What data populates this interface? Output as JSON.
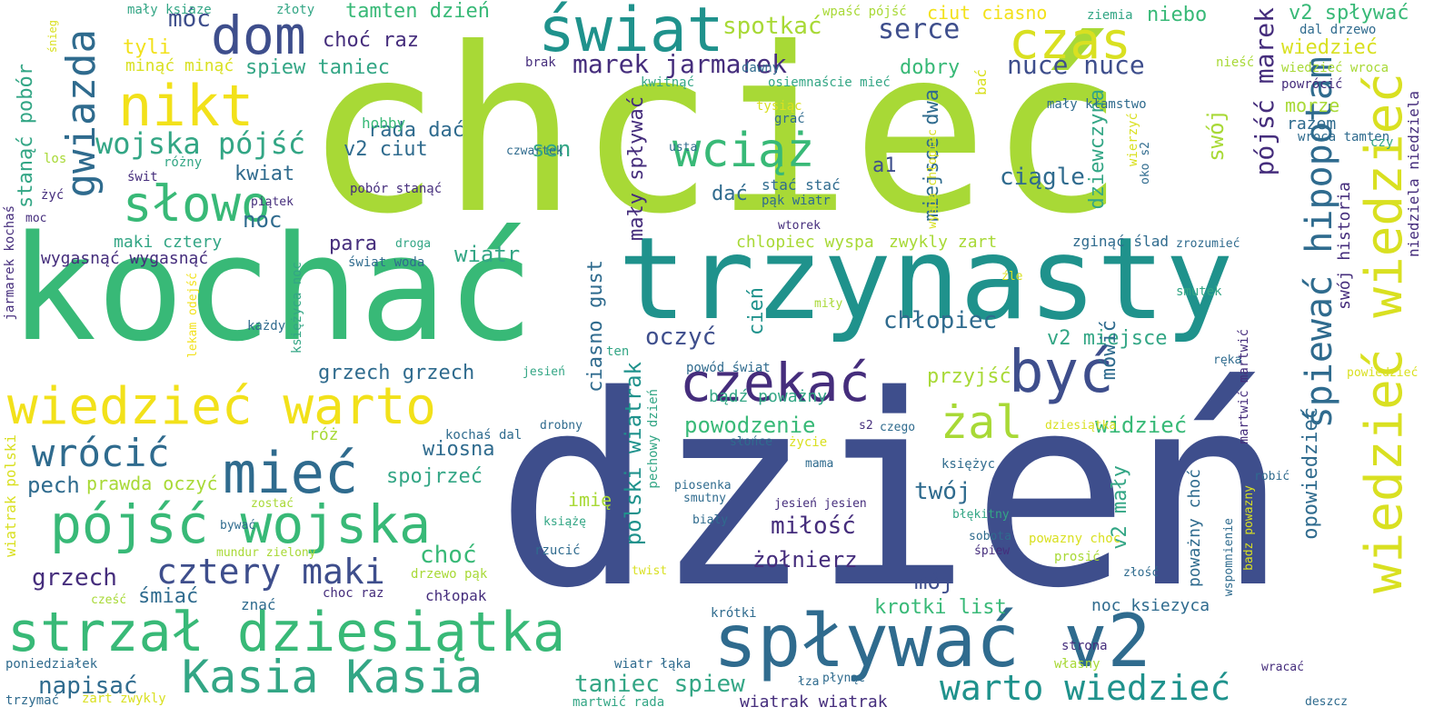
{
  "palette": [
    "#a8d936",
    "#3e4e8c",
    "#38b977",
    "#1f928c",
    "#2f6b8e",
    "#f2e11a",
    "#452d7c",
    "#33a685"
  ],
  "words": [
    {
      "text": "chcieć",
      "color": "#a8d936"
    },
    {
      "text": "dzień",
      "color": "#3e4e8c"
    },
    {
      "text": "kochać",
      "color": "#38b977"
    },
    {
      "text": "trzynasty",
      "color": "#1f928c"
    },
    {
      "text": "świat",
      "color": "#1f928c"
    },
    {
      "text": "dom",
      "color": "#3e4e8c"
    },
    {
      "text": "czas",
      "color": "#d9e021"
    },
    {
      "text": "nikt",
      "color": "#f2e11a"
    },
    {
      "text": "słowo",
      "color": "#38b977"
    },
    {
      "text": "wciąż",
      "color": "#38b977"
    },
    {
      "text": "gwiazda",
      "color": "#2f6b8e"
    },
    {
      "text": "wiedzieć warto",
      "color": "#f2e11a"
    },
    {
      "text": "mieć",
      "color": "#2f6b8e"
    },
    {
      "text": "wrócić",
      "color": "#2f6b8e"
    },
    {
      "text": "pójść wojska",
      "color": "#38b977"
    },
    {
      "text": "strzał dziesiątka",
      "color": "#38b977"
    },
    {
      "text": "spływać v2",
      "color": "#2f6b8e"
    },
    {
      "text": "czekać",
      "color": "#452d7c"
    },
    {
      "text": "być",
      "color": "#3e4e8c"
    },
    {
      "text": "Kasia Kasia",
      "color": "#33a685"
    },
    {
      "text": "wiedzieć wiedzieć",
      "color": "#d9e021"
    },
    {
      "text": "śpiewać hipopotam",
      "color": "#2f6b8e"
    },
    {
      "text": "cztery maki",
      "color": "#3e4e8c"
    },
    {
      "text": "żal",
      "color": "#a8d936"
    },
    {
      "text": "wojska pójść",
      "color": "#33a685"
    },
    {
      "text": "marek jarmarek",
      "color": "#452d7c"
    },
    {
      "text": "serce",
      "color": "#3e4e8c"
    },
    {
      "text": "nuce nuce",
      "color": "#3e4e8c"
    },
    {
      "text": "spotkać",
      "color": "#a8d936"
    },
    {
      "text": "pójść marek",
      "color": "#452d7c"
    },
    {
      "text": "warto wiedzieć",
      "color": "#1f928c"
    },
    {
      "text": "taniec spiew",
      "color": "#33a685"
    },
    {
      "text": "tamten dzień",
      "color": "#38b977"
    },
    {
      "text": "choć raz",
      "color": "#452d7c"
    },
    {
      "text": "spiew taniec",
      "color": "#33a685"
    },
    {
      "text": "móc",
      "color": "#3e4e8c"
    },
    {
      "text": "tyli",
      "color": "#f2e11a"
    },
    {
      "text": "minąć minąć",
      "color": "#d9e021"
    },
    {
      "text": "ciut ciasno",
      "color": "#f2e11a"
    },
    {
      "text": "niebo",
      "color": "#38b977"
    },
    {
      "text": "v2 spływać",
      "color": "#38b977"
    },
    {
      "text": "wiedzieć",
      "color": "#d9e021"
    },
    {
      "text": "dobry",
      "color": "#38b977"
    },
    {
      "text": "rada dać",
      "color": "#2f6b8e"
    },
    {
      "text": "v2 ciut",
      "color": "#2f6b8e"
    },
    {
      "text": "sen",
      "color": "#33a685"
    },
    {
      "text": "kwiat",
      "color": "#2f6b8e"
    },
    {
      "text": "dać",
      "color": "#2f6b8e"
    },
    {
      "text": "a1",
      "color": "#3e4e8c"
    },
    {
      "text": "miejsce dwa",
      "color": "#2f6b8e"
    },
    {
      "text": "ciągle",
      "color": "#2f6b8e"
    },
    {
      "text": "dziewczyna",
      "color": "#33a685"
    },
    {
      "text": "swój",
      "color": "#a8d936"
    },
    {
      "text": "noc",
      "color": "#2f6b8e"
    },
    {
      "text": "maki cztery",
      "color": "#33a685"
    },
    {
      "text": "para",
      "color": "#452d7c"
    },
    {
      "text": "wiatr",
      "color": "#33a685"
    },
    {
      "text": "wygasnąć wygasnąć",
      "color": "#452d7c"
    },
    {
      "text": "stanąć pobór",
      "color": "#33a685"
    },
    {
      "text": "chłopiec",
      "color": "#2f6b8e"
    },
    {
      "text": "oczyć",
      "color": "#3e4e8c"
    },
    {
      "text": "v2 miejsce",
      "color": "#33a685"
    },
    {
      "text": "przyjść",
      "color": "#a8d936"
    },
    {
      "text": "powodzenie",
      "color": "#38b977"
    },
    {
      "text": "widzieć",
      "color": "#38b977"
    },
    {
      "text": "grzech grzech",
      "color": "#2f6b8e"
    },
    {
      "text": "róż",
      "color": "#a8d936"
    },
    {
      "text": "wiosna",
      "color": "#2f6b8e"
    },
    {
      "text": "pech",
      "color": "#2f6b8e"
    },
    {
      "text": "prawda oczyć",
      "color": "#a8d936"
    },
    {
      "text": "spojrzeć",
      "color": "#33a685"
    },
    {
      "text": "twój",
      "color": "#2f6b8e"
    },
    {
      "text": "miłość",
      "color": "#452d7c"
    },
    {
      "text": "żołnierz",
      "color": "#452d7c"
    },
    {
      "text": "mój",
      "color": "#3e4e8c"
    },
    {
      "text": "grzech",
      "color": "#452d7c"
    },
    {
      "text": "choć",
      "color": "#38b977"
    },
    {
      "text": "napisać",
      "color": "#2f6b8e"
    },
    {
      "text": "śmiać",
      "color": "#2f6b8e"
    },
    {
      "text": "imię",
      "color": "#a8d936"
    },
    {
      "text": "krotki list",
      "color": "#38b977"
    },
    {
      "text": "bądź poważny",
      "color": "#33a685"
    },
    {
      "text": "cień",
      "color": "#1f928c"
    },
    {
      "text": "mówić",
      "color": "#2f6b8e"
    },
    {
      "text": "polski wiatrak",
      "color": "#1f928c"
    },
    {
      "text": "ciasno gust",
      "color": "#2f6b8e"
    },
    {
      "text": "mały spływać",
      "color": "#452d7c"
    },
    {
      "text": "chlopiec wyspa",
      "color": "#a8d936"
    },
    {
      "text": "zwykly zart",
      "color": "#a8d936"
    },
    {
      "text": "opowiedzieć",
      "color": "#2f6b8e"
    },
    {
      "text": "swój historia",
      "color": "#452d7c"
    },
    {
      "text": "niedziela niedziela",
      "color": "#452d7c"
    },
    {
      "text": "morze",
      "color": "#a8d936"
    },
    {
      "text": "razem",
      "color": "#2f6b8e"
    },
    {
      "text": "v2 mały",
      "color": "#33a685"
    },
    {
      "text": "poważny choć",
      "color": "#2f6b8e"
    },
    {
      "text": "noc ksiezyca",
      "color": "#2f6b8e"
    },
    {
      "text": "wiatrak wiatrak",
      "color": "#452d7c"
    },
    {
      "text": "mały ksiaze",
      "color": "#33a685"
    },
    {
      "text": "złoty",
      "color": "#33a685"
    },
    {
      "text": "wpaść pójść",
      "color": "#a8d936"
    },
    {
      "text": "ziemia",
      "color": "#33a685"
    },
    {
      "text": "dal drzewo",
      "color": "#2f6b8e"
    },
    {
      "text": "dawny",
      "color": "#2f6b8e"
    },
    {
      "text": "brak",
      "color": "#452d7c"
    },
    {
      "text": "kwitnąć",
      "color": "#33a685"
    },
    {
      "text": "osiemnaście mieć",
      "color": "#33a685"
    },
    {
      "text": "tysiąc",
      "color": "#d9e021"
    },
    {
      "text": "grać",
      "color": "#2f6b8e"
    },
    {
      "text": "mały kłamstwo",
      "color": "#2f6b8e"
    },
    {
      "text": "bać",
      "color": "#d9e021"
    },
    {
      "text": "nieść",
      "color": "#a8d936"
    },
    {
      "text": "wiedzieć wroca",
      "color": "#a8d936"
    },
    {
      "text": "powrócić",
      "color": "#452d7c"
    },
    {
      "text": "wroca tamten",
      "color": "#2f6b8e"
    },
    {
      "text": "czy",
      "color": "#33a685"
    },
    {
      "text": "hobby",
      "color": "#38b977"
    },
    {
      "text": "różny",
      "color": "#33a685"
    },
    {
      "text": "świt",
      "color": "#452d7c"
    },
    {
      "text": "los",
      "color": "#a8d936"
    },
    {
      "text": "żyć",
      "color": "#452d7c"
    },
    {
      "text": "moc",
      "color": "#452d7c"
    },
    {
      "text": "pobór stanąć",
      "color": "#452d7c"
    },
    {
      "text": "czwartek",
      "color": "#2f6b8e"
    },
    {
      "text": "usta",
      "color": "#2f6b8e"
    },
    {
      "text": "stać stać",
      "color": "#2f6b8e"
    },
    {
      "text": "pąk wiatr",
      "color": "#2f6b8e"
    },
    {
      "text": "wyspa chłopiec",
      "color": "#d9e021"
    },
    {
      "text": "wierzyć",
      "color": "#d9e021"
    },
    {
      "text": "oko s2",
      "color": "#2f6b8e"
    },
    {
      "text": "piątek",
      "color": "#452d7c"
    },
    {
      "text": "wtorek",
      "color": "#452d7c"
    },
    {
      "text": "droga",
      "color": "#33a685"
    },
    {
      "text": "świat woda",
      "color": "#2f6b8e"
    },
    {
      "text": "zginąć ślad",
      "color": "#2f6b8e"
    },
    {
      "text": "zrozumieć",
      "color": "#2f6b8e"
    },
    {
      "text": "źle",
      "color": "#d9e021"
    },
    {
      "text": "miły",
      "color": "#a8d936"
    },
    {
      "text": "smutek",
      "color": "#33a685"
    },
    {
      "text": "martwić martwić",
      "color": "#452d7c"
    },
    {
      "text": "jarmarek kochaś",
      "color": "#452d7c"
    },
    {
      "text": "księżyca noc",
      "color": "#33a685"
    },
    {
      "text": "każdy",
      "color": "#2f6b8e"
    },
    {
      "text": "lekam odejść",
      "color": "#f2e11a"
    },
    {
      "text": "ten",
      "color": "#33a685"
    },
    {
      "text": "powód świat",
      "color": "#2f6b8e"
    },
    {
      "text": "jesień",
      "color": "#33a685"
    },
    {
      "text": "ręka",
      "color": "#2f6b8e"
    },
    {
      "text": "powiedzieć",
      "color": "#d9e021"
    },
    {
      "text": "kochaś dal",
      "color": "#2f6b8e"
    },
    {
      "text": "drobny",
      "color": "#2f6b8e"
    },
    {
      "text": "pechowy dzień",
      "color": "#33a685"
    },
    {
      "text": "s2",
      "color": "#452d7c"
    },
    {
      "text": "czego",
      "color": "#2f6b8e"
    },
    {
      "text": "dziesiątka",
      "color": "#d9e021"
    },
    {
      "text": "słońce",
      "color": "#2f6b8e"
    },
    {
      "text": "życie",
      "color": "#d9e021"
    },
    {
      "text": "mama",
      "color": "#2f6b8e"
    },
    {
      "text": "księżyc",
      "color": "#2f6b8e"
    },
    {
      "text": "robić",
      "color": "#2f6b8e"
    },
    {
      "text": "wiatrak polski",
      "color": "#d9e021"
    },
    {
      "text": "piosenka",
      "color": "#2f6b8e"
    },
    {
      "text": "smutny",
      "color": "#2f6b8e"
    },
    {
      "text": "jesień jesien",
      "color": "#452d7c"
    },
    {
      "text": "błękitny",
      "color": "#33a685"
    },
    {
      "text": "biały",
      "color": "#2f6b8e"
    },
    {
      "text": "książę",
      "color": "#33a685"
    },
    {
      "text": "zostać",
      "color": "#a8d936"
    },
    {
      "text": "bywać",
      "color": "#2f6b8e"
    },
    {
      "text": "mundur zielony",
      "color": "#a8d936"
    },
    {
      "text": "rzucić",
      "color": "#2f6b8e"
    },
    {
      "text": "sobota",
      "color": "#2f6b8e"
    },
    {
      "text": "śpiew",
      "color": "#452d7c"
    },
    {
      "text": "powazny choc",
      "color": "#d9e021"
    },
    {
      "text": "prosić",
      "color": "#a8d936"
    },
    {
      "text": "wspomnienie",
      "color": "#2f6b8e"
    },
    {
      "text": "badz powazny",
      "color": "#d9e021"
    },
    {
      "text": "złość",
      "color": "#2f6b8e"
    },
    {
      "text": "drzewo pąk",
      "color": "#a8d936"
    },
    {
      "text": "twist",
      "color": "#d9e021"
    },
    {
      "text": "cześć",
      "color": "#a8d936"
    },
    {
      "text": "znać",
      "color": "#2f6b8e"
    },
    {
      "text": "choc raz",
      "color": "#452d7c"
    },
    {
      "text": "chłopak",
      "color": "#452d7c"
    },
    {
      "text": "krótki",
      "color": "#2f6b8e"
    },
    {
      "text": "strona",
      "color": "#452d7c"
    },
    {
      "text": "własny",
      "color": "#a8d936"
    },
    {
      "text": "wracać",
      "color": "#452d7c"
    },
    {
      "text": "płynąć",
      "color": "#2f6b8e"
    },
    {
      "text": "łza",
      "color": "#2f6b8e"
    },
    {
      "text": "wiatr łąka",
      "color": "#2f6b8e"
    },
    {
      "text": "poniedziałek",
      "color": "#2f6b8e"
    },
    {
      "text": "trzymać",
      "color": "#2f6b8e"
    },
    {
      "text": "zart zwykly",
      "color": "#d9e021"
    },
    {
      "text": "martwić rada",
      "color": "#33a685"
    },
    {
      "text": "deszcz",
      "color": "#2f6b8e"
    },
    {
      "text": "śnieg",
      "color": "#d9e021"
    }
  ]
}
